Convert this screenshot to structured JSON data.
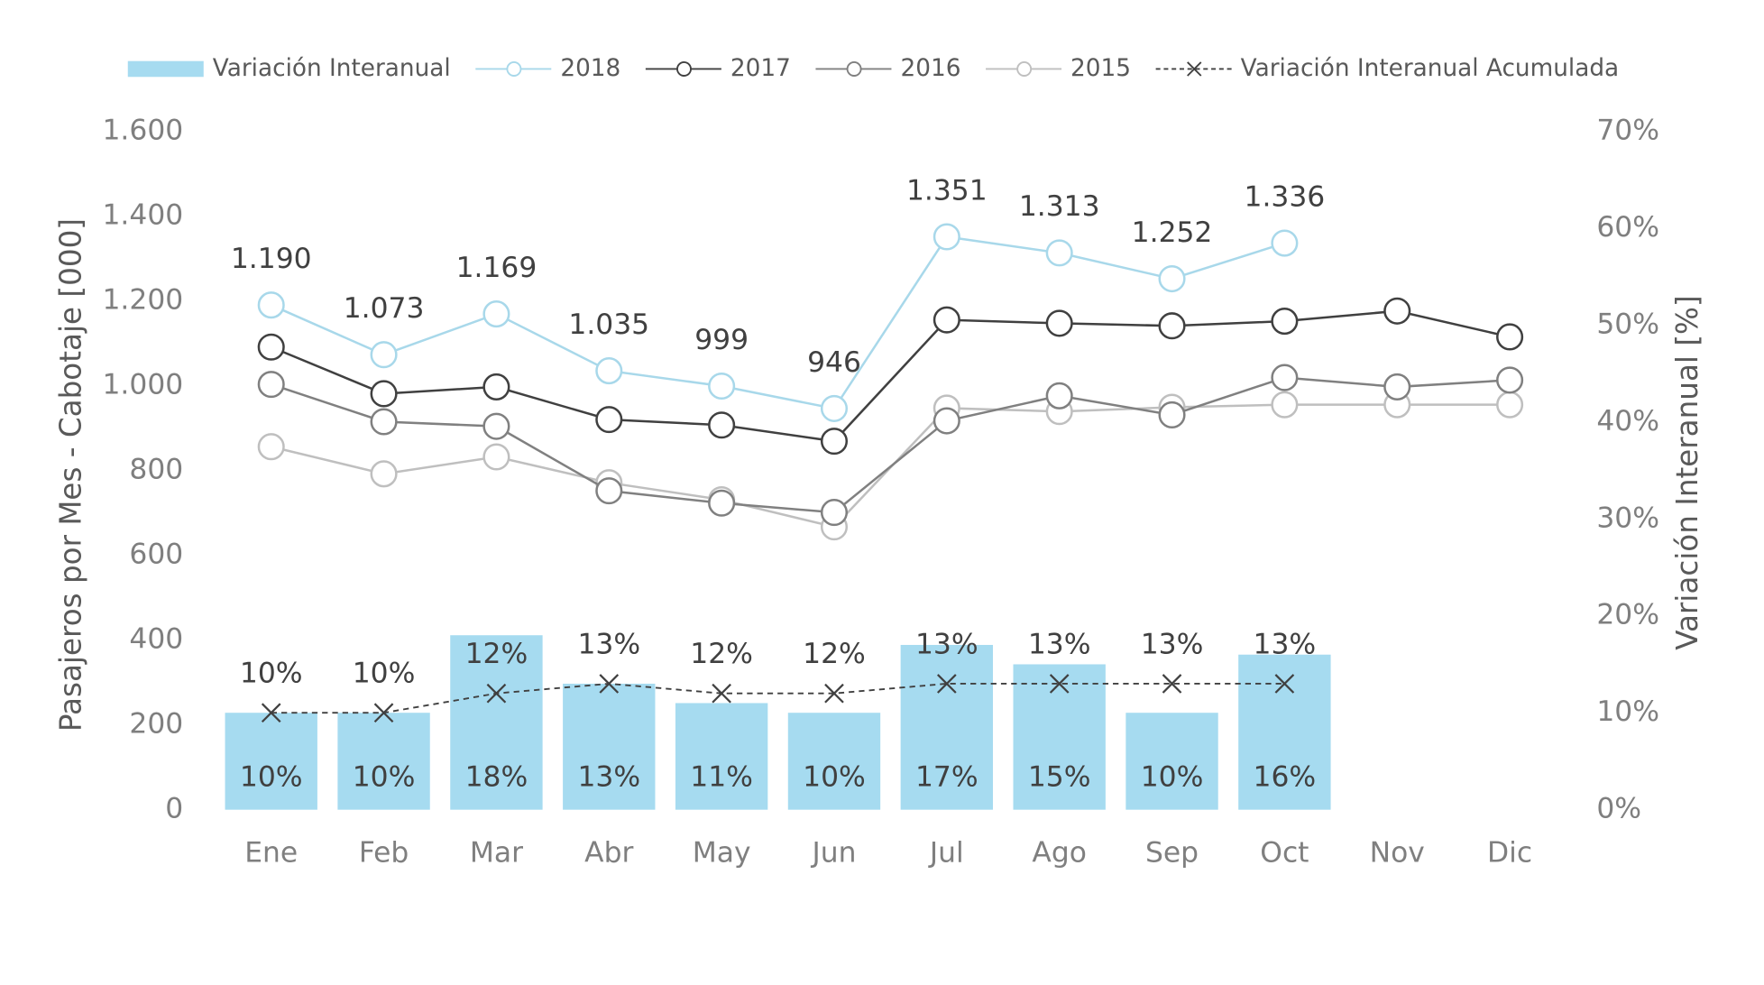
{
  "chart_data": {
    "type": "combo",
    "y_axis_label": "Pasajeros por Mes - Cabotaje [000]",
    "y2_axis_label": "Variación Interanual [%]",
    "categories": [
      "Ene",
      "Feb",
      "Mar",
      "Abr",
      "May",
      "Jun",
      "Jul",
      "Ago",
      "Sep",
      "Oct",
      "Nov",
      "Dic"
    ],
    "ylim": [
      0,
      1600
    ],
    "yticks": [
      0,
      200,
      400,
      600,
      800,
      {
        "value": 1000,
        "label": "1.000"
      },
      {
        "value": 1200,
        "label": "1.200"
      },
      {
        "value": 1400,
        "label": "1.400"
      },
      {
        "value": 1600,
        "label": "1.600"
      }
    ],
    "y2lim": [
      0,
      70
    ],
    "y2ticks": [
      {
        "value": 0,
        "label": "0%"
      },
      {
        "value": 10,
        "label": "10%"
      },
      {
        "value": 20,
        "label": "20%"
      },
      {
        "value": 30,
        "label": "30%"
      },
      {
        "value": 40,
        "label": "40%"
      },
      {
        "value": 50,
        "label": "50%"
      },
      {
        "value": 60,
        "label": "60%"
      },
      {
        "value": 70,
        "label": "70%"
      }
    ],
    "legend": "top",
    "series": [
      {
        "name": "Variación Interanual",
        "type": "bar",
        "axis": "y2",
        "color": "#a6dbf0",
        "values": [
          10,
          10,
          18,
          13,
          11,
          10,
          17,
          15,
          10,
          16,
          null,
          null
        ],
        "value_labels": [
          "10%",
          "10%",
          "18%",
          "13%",
          "11%",
          "10%",
          "17%",
          "15%",
          "10%",
          "16%",
          null,
          null
        ]
      },
      {
        "name": "2018",
        "type": "line",
        "color": "#a8d8ea",
        "values": [
          1190,
          1073,
          1169,
          1035,
          999,
          946,
          1351,
          1313,
          1252,
          1336,
          null,
          null
        ],
        "value_labels": [
          "1.190",
          "1.073",
          "1.169",
          "1.035",
          "999",
          "946",
          "1.351",
          "1.313",
          "1.252",
          "1.336",
          null,
          null
        ]
      },
      {
        "name": "2017",
        "type": "line",
        "color": "#404040",
        "values": [
          1091,
          981,
          997,
          920,
          907,
          869,
          1155,
          1147,
          1141,
          1152,
          1176,
          1115
        ]
      },
      {
        "name": "2016",
        "type": "line",
        "color": "#808080",
        "values": [
          1003,
          915,
          904,
          752,
          723,
          701,
          917,
          976,
          931,
          1019,
          997,
          1013
        ]
      },
      {
        "name": "2015",
        "type": "line",
        "color": "#bfbfbf",
        "values": [
          856,
          792,
          832,
          771,
          731,
          667,
          947,
          939,
          949,
          955,
          955,
          955
        ]
      },
      {
        "name": "Variación Interanual Acumulada",
        "type": "cross-line",
        "axis": "y2",
        "color": "#404040",
        "values": [
          10,
          10,
          12,
          13,
          12,
          12,
          13,
          13,
          13,
          13,
          null,
          null
        ],
        "value_labels": [
          "10%",
          "10%",
          "12%",
          "13%",
          "12%",
          "12%",
          "13%",
          "13%",
          "13%",
          "13%",
          null,
          null
        ]
      }
    ]
  }
}
